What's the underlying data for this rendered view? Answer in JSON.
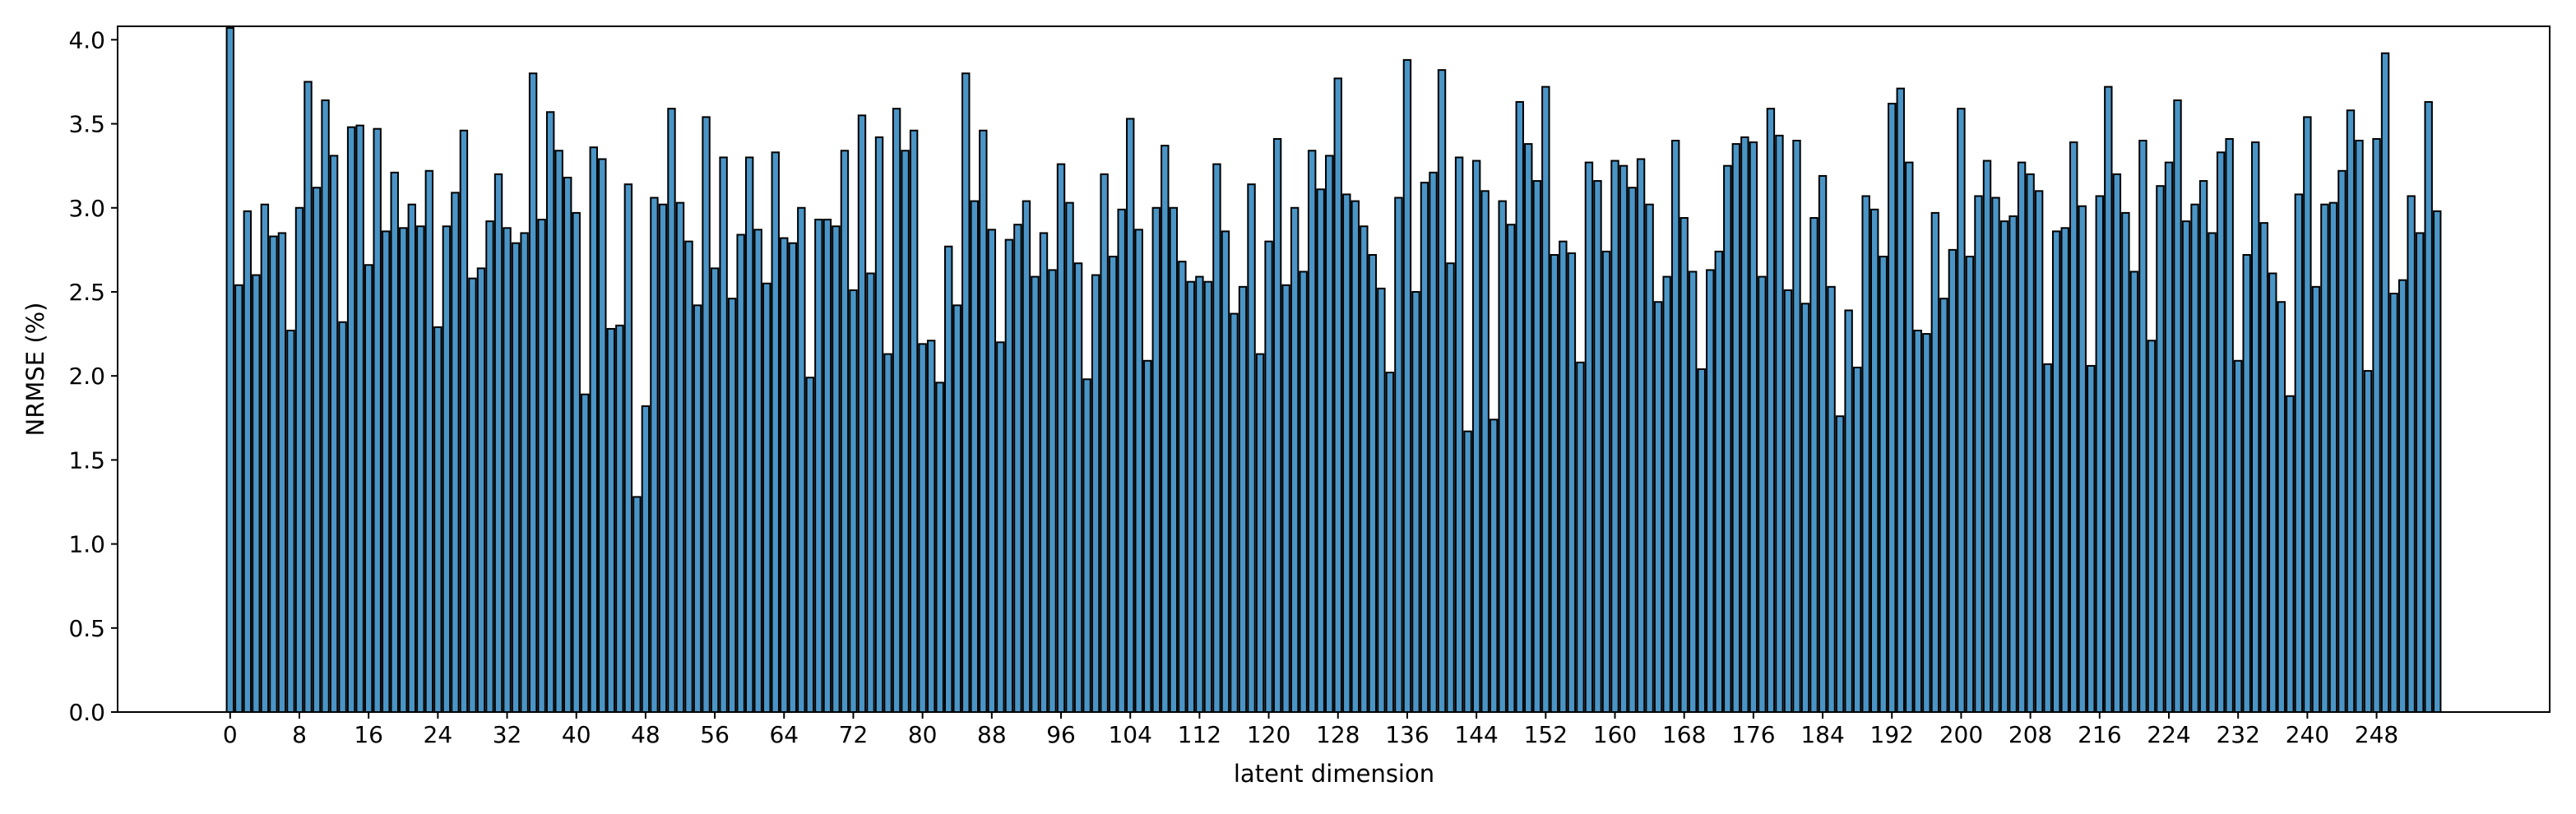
{
  "chart_data": {
    "type": "bar",
    "title": "",
    "xlabel": "latent dimension",
    "ylabel": "NRMSE (%)",
    "xlim": [
      -13,
      268
    ],
    "ylim": [
      0,
      4.08
    ],
    "grid": false,
    "bar_color": "#4a95c6",
    "edge_color": "#000000",
    "x_ticks": [
      0,
      8,
      16,
      24,
      32,
      40,
      48,
      56,
      64,
      72,
      80,
      88,
      96,
      104,
      112,
      120,
      128,
      136,
      144,
      152,
      160,
      168,
      176,
      184,
      192,
      200,
      208,
      216,
      224,
      232,
      240,
      248
    ],
    "y_ticks": [
      0.0,
      0.5,
      1.0,
      1.5,
      2.0,
      2.5,
      3.0,
      3.5,
      4.0
    ],
    "y_tick_labels": [
      "0.0",
      "0.5",
      "1.0",
      "1.5",
      "2.0",
      "2.5",
      "3.0",
      "3.5",
      "4.0"
    ],
    "values": [
      4.07,
      2.54,
      2.98,
      2.6,
      3.02,
      2.83,
      2.85,
      2.27,
      3.0,
      3.75,
      3.12,
      3.64,
      3.31,
      2.32,
      3.48,
      3.49,
      2.66,
      3.47,
      2.86,
      3.21,
      2.88,
      3.02,
      2.89,
      3.22,
      2.29,
      2.89,
      3.09,
      3.46,
      2.58,
      2.64,
      2.92,
      3.2,
      2.88,
      2.79,
      2.85,
      3.8,
      2.93,
      3.57,
      3.34,
      3.18,
      2.97,
      1.89,
      3.36,
      3.29,
      2.28,
      2.3,
      3.14,
      1.28,
      1.82,
      3.06,
      3.02,
      3.59,
      3.03,
      2.8,
      2.42,
      3.54,
      2.64,
      3.3,
      2.46,
      2.84,
      3.3,
      2.87,
      2.55,
      3.33,
      2.82,
      2.79,
      3.0,
      1.99,
      2.93,
      2.93,
      2.89,
      3.34,
      2.51,
      3.55,
      2.61,
      3.42,
      2.13,
      3.59,
      3.34,
      3.46,
      2.19,
      2.21,
      1.96,
      2.77,
      2.42,
      3.8,
      3.04,
      3.46,
      2.87,
      2.2,
      2.81,
      2.9,
      3.04,
      2.59,
      2.85,
      2.63,
      3.26,
      3.03,
      2.67,
      1.98,
      2.6,
      3.2,
      2.71,
      2.99,
      3.53,
      2.87,
      2.09,
      3.0,
      3.37,
      3.0,
      2.68,
      2.56,
      2.59,
      2.56,
      3.26,
      2.86,
      2.37,
      2.53,
      3.14,
      2.13,
      2.8,
      3.41,
      2.54,
      3.0,
      2.62,
      3.34,
      3.11,
      3.31,
      3.77,
      3.08,
      3.04,
      2.89,
      2.72,
      2.52,
      2.02,
      3.06,
      3.88,
      2.5,
      3.15,
      3.21,
      3.82,
      2.67,
      3.3,
      1.67,
      3.28,
      3.1,
      1.74,
      3.04,
      2.9,
      3.63,
      3.38,
      3.16,
      3.72,
      2.72,
      2.8,
      2.73,
      2.08,
      3.27,
      3.16,
      2.74,
      3.28,
      3.25,
      3.12,
      3.29,
      3.02,
      2.44,
      2.59,
      3.4,
      2.94,
      2.62,
      2.04,
      2.63,
      2.74,
      3.25,
      3.38,
      3.42,
      3.39,
      2.59,
      3.59,
      3.43,
      2.51,
      3.4,
      2.43,
      2.94,
      3.19,
      2.53,
      1.76,
      2.39,
      2.05,
      3.07,
      2.99,
      2.71,
      3.62,
      3.71,
      3.27,
      2.27,
      2.25,
      2.97,
      2.46,
      2.75,
      3.59,
      2.71,
      3.07,
      3.28,
      3.06,
      2.92,
      2.95,
      3.27,
      3.2,
      3.1,
      2.07,
      2.86,
      2.88,
      3.39,
      3.01,
      2.06,
      3.07,
      3.72,
      3.2,
      2.97,
      2.62,
      3.4,
      2.21,
      3.13,
      3.27,
      3.64,
      2.92,
      3.02,
      3.16,
      2.85,
      3.33,
      3.41,
      2.09,
      2.72,
      3.39,
      2.91,
      2.61,
      2.44,
      1.88,
      3.08,
      3.54,
      2.53,
      3.02,
      3.03,
      3.22,
      3.58,
      3.4,
      2.03,
      3.41,
      3.92,
      2.49,
      2.57,
      3.07,
      2.85,
      3.63,
      2.98
    ]
  }
}
